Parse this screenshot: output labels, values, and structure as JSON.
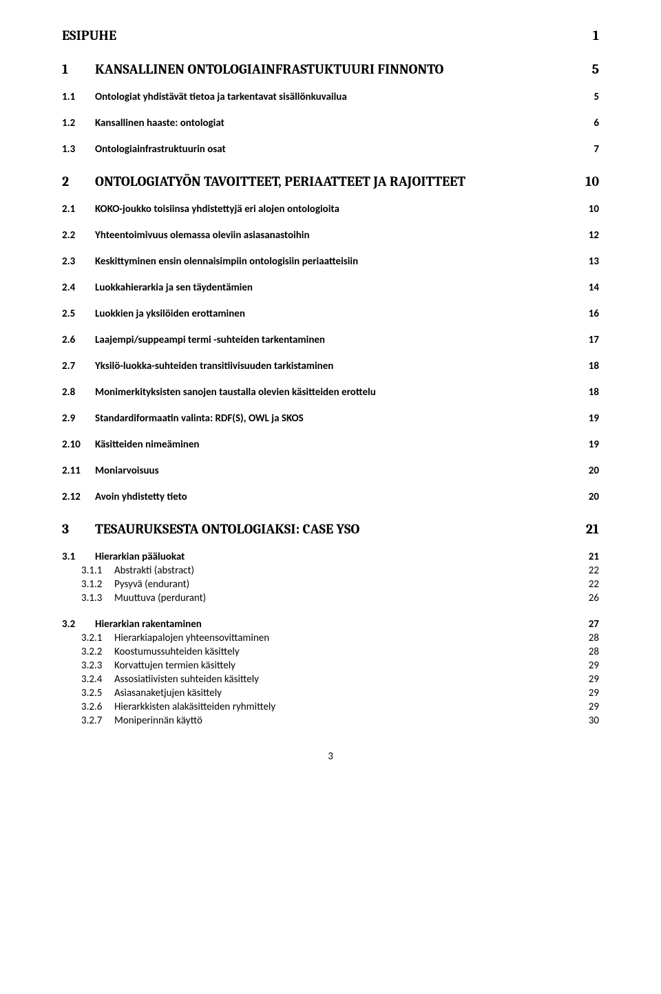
{
  "page_number": "3",
  "entries": [
    {
      "level": "h1",
      "first": true,
      "num": "",
      "title": "ESIPUHE",
      "page": "1"
    },
    {
      "level": "h1",
      "num": "1",
      "title": "KANSALLINEN ONTOLOGIAINFRASTUKTUURI FINNONTO",
      "page": "5"
    },
    {
      "level": "h2",
      "num": "1.1",
      "title": "Ontologiat yhdistävät tietoa ja tarkentavat sisällönkuvailua",
      "page": "5"
    },
    {
      "level": "h2",
      "num": "1.2",
      "title": "Kansallinen haaste: ontologiat",
      "page": "6"
    },
    {
      "level": "h2",
      "num": "1.3",
      "title": "Ontologiainfrastruktuurin osat",
      "page": "7"
    },
    {
      "level": "h1",
      "num": "2",
      "title": "ONTOLOGIATYÖN TAVOITTEET, PERIAATTEET JA RAJOITTEET",
      "page": "10"
    },
    {
      "level": "h2",
      "num": "2.1",
      "title": "KOKO-joukko toisiinsa yhdistettyjä eri alojen ontologioita",
      "page": "10"
    },
    {
      "level": "h2",
      "num": "2.2",
      "title": "Yhteentoimivuus olemassa oleviin asiasanastoihin",
      "page": "12"
    },
    {
      "level": "h2",
      "num": "2.3",
      "title": "Keskittyminen ensin olennaisimpiin ontologisiin periaatteisiin",
      "page": "13"
    },
    {
      "level": "h2",
      "num": "2.4",
      "title": "Luokkahierarkia ja sen täydentämien",
      "page": "14"
    },
    {
      "level": "h2",
      "num": "2.5",
      "title": "Luokkien ja yksilöiden erottaminen",
      "page": "16"
    },
    {
      "level": "h2",
      "num": "2.6",
      "title": "Laajempi/suppeampi termi -suhteiden tarkentaminen",
      "page": "17"
    },
    {
      "level": "h2",
      "num": "2.7",
      "title": "Yksilö-luokka-suhteiden transitiivisuuden tarkistaminen",
      "page": "18"
    },
    {
      "level": "h2",
      "num": "2.8",
      "title": "Monimerkityksisten sanojen taustalla olevien käsitteiden erottelu",
      "page": "18"
    },
    {
      "level": "h2",
      "num": "2.9",
      "title": "Standardiformaatin valinta: RDF(S), OWL ja SKOS",
      "page": "19"
    },
    {
      "level": "h2",
      "num": "2.10",
      "title": "Käsitteiden nimeäminen",
      "page": "19"
    },
    {
      "level": "h2",
      "num": "2.11",
      "title": "Moniarvoisuus",
      "page": "20"
    },
    {
      "level": "h2",
      "num": "2.12",
      "title": "Avoin yhdistetty tieto",
      "page": "20"
    },
    {
      "level": "h1",
      "num": "3",
      "title": "TESAURUKSESTA ONTOLOGIAKSI: CASE YSO",
      "page": "21"
    },
    {
      "level": "h2",
      "num": "3.1",
      "title": "Hierarkian pääluokat",
      "page": "21"
    },
    {
      "level": "h3",
      "num": "3.1.1",
      "title": "Abstrakti (abstract)",
      "page": "22"
    },
    {
      "level": "h3",
      "num": "3.1.2",
      "title": "Pysyvä (endurant)",
      "page": "22"
    },
    {
      "level": "h3",
      "num": "3.1.3",
      "title": "Muuttuva (perdurant)",
      "page": "26"
    },
    {
      "level": "h2",
      "num": "3.2",
      "title": "Hierarkian rakentaminen",
      "page": "27"
    },
    {
      "level": "h3",
      "num": "3.2.1",
      "title": "Hierarkiapalojen yhteensovittaminen",
      "page": "28"
    },
    {
      "level": "h3",
      "num": "3.2.2",
      "title": "Koostumussuhteiden käsittely",
      "page": "28"
    },
    {
      "level": "h3",
      "num": "3.2.3",
      "title": "Korvattujen termien käsittely",
      "page": "29"
    },
    {
      "level": "h3",
      "num": "3.2.4",
      "title": "Assosiatiivisten suhteiden käsittely",
      "page": "29"
    },
    {
      "level": "h3",
      "num": "3.2.5",
      "title": "Asiasanaketjujen käsittely",
      "page": "29"
    },
    {
      "level": "h3",
      "num": "3.2.6",
      "title": "Hierarkkisten alakäsitteiden ryhmittely",
      "page": "29"
    },
    {
      "level": "h3",
      "num": "3.2.7",
      "title": "Moniperinnän käyttö",
      "page": "30"
    }
  ]
}
